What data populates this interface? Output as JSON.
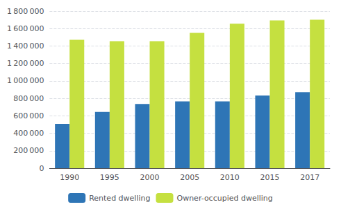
{
  "chart_data": {
    "type": "bar",
    "categories": [
      "1990",
      "1995",
      "2000",
      "2005",
      "2010",
      "2015",
      "2017"
    ],
    "series": [
      {
        "name": "Rented dwelling",
        "color": "#2e75b6",
        "values": [
          507000,
          644000,
          735000,
          765000,
          765000,
          833000,
          870000
        ]
      },
      {
        "name": "Owner-occupied dwelling",
        "color": "#c5e040",
        "values": [
          1470000,
          1455000,
          1455000,
          1550000,
          1655000,
          1693000,
          1700000
        ]
      }
    ],
    "ylim": [
      0,
      1800000
    ],
    "yticks": [
      0,
      {
        "value": 200000,
        "label": "200 000"
      },
      {
        "value": 400000,
        "label": "400 000"
      },
      {
        "value": 600000,
        "label": "600 000"
      },
      {
        "value": 800000,
        "label": "800 000"
      },
      {
        "value": 1000000,
        "label": "1 000 000"
      },
      {
        "value": 1200000,
        "label": "1 200 000"
      },
      {
        "value": 1400000,
        "label": "1 400 000"
      },
      {
        "value": 1600000,
        "label": "1 600 000"
      },
      {
        "value": 1800000,
        "label": "1 800 000"
      }
    ],
    "grid": true,
    "legend": "bottom"
  }
}
